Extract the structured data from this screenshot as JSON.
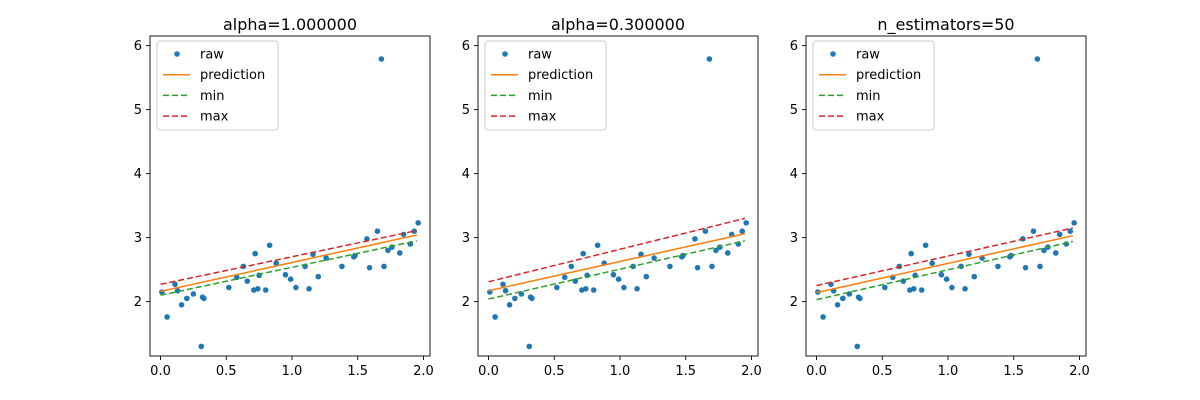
{
  "chart_data": [
    {
      "type": "scatter",
      "title": "alpha=1.000000",
      "xlabel": "",
      "ylabel": "",
      "xlim": [
        -0.08,
        2.05
      ],
      "ylim": [
        1.15,
        6.15
      ],
      "xticks": [
        "0.0",
        "0.5",
        "1.0",
        "1.5",
        "2.0"
      ],
      "yticks": [
        "2",
        "3",
        "4",
        "5",
        "6"
      ],
      "grid": false,
      "legend": {
        "placement": "top-left",
        "entries": [
          "raw",
          "prediction",
          "min",
          "max"
        ]
      },
      "series": [
        {
          "name": "raw",
          "kind": "points",
          "color": "#1f77b4",
          "x": [
            0.01,
            0.05,
            0.11,
            0.13,
            0.16,
            0.2,
            0.25,
            0.31,
            0.32,
            0.33,
            0.52,
            0.58,
            0.63,
            0.66,
            0.71,
            0.72,
            0.74,
            0.75,
            0.8,
            0.83,
            0.88,
            0.95,
            0.99,
            1.03,
            1.1,
            1.13,
            1.16,
            1.2,
            1.26,
            1.38,
            1.47,
            1.48,
            1.57,
            1.59,
            1.65,
            1.68,
            1.7,
            1.73,
            1.76,
            1.82,
            1.85,
            1.9,
            1.93,
            1.96
          ],
          "y": [
            2.15,
            1.76,
            2.27,
            2.17,
            1.95,
            2.05,
            2.12,
            1.3,
            2.07,
            2.05,
            2.22,
            2.38,
            2.55,
            2.32,
            2.18,
            2.75,
            2.2,
            2.41,
            2.18,
            2.88,
            2.6,
            2.42,
            2.35,
            2.22,
            2.55,
            2.2,
            2.74,
            2.39,
            2.68,
            2.55,
            2.7,
            2.72,
            2.98,
            2.53,
            3.1,
            5.79,
            2.55,
            2.8,
            2.85,
            2.76,
            3.05,
            2.9,
            3.1,
            3.23
          ]
        },
        {
          "name": "prediction",
          "kind": "line",
          "color": "#ff7f0e",
          "dash": "solid",
          "x": [
            0,
            1.95
          ],
          "y": [
            2.16,
            3.04
          ]
        },
        {
          "name": "min",
          "kind": "line",
          "color": "#2ca02c",
          "dash": "dashed",
          "x": [
            0,
            1.95
          ],
          "y": [
            2.1,
            2.95
          ]
        },
        {
          "name": "max",
          "kind": "line",
          "color": "#d62728",
          "dash": "dashed",
          "x": [
            0,
            1.95
          ],
          "y": [
            2.27,
            3.11
          ]
        }
      ]
    },
    {
      "type": "scatter",
      "title": "alpha=0.300000",
      "xlabel": "",
      "ylabel": "",
      "xlim": [
        -0.08,
        2.05
      ],
      "ylim": [
        1.15,
        6.15
      ],
      "xticks": [
        "0.0",
        "0.5",
        "1.0",
        "1.5",
        "2.0"
      ],
      "yticks": [
        "2",
        "3",
        "4",
        "5",
        "6"
      ],
      "grid": false,
      "legend": {
        "placement": "top-left",
        "entries": [
          "raw",
          "prediction",
          "min",
          "max"
        ]
      },
      "series": [
        {
          "name": "raw",
          "kind": "points",
          "color": "#1f77b4",
          "x": [
            0.01,
            0.05,
            0.11,
            0.13,
            0.16,
            0.2,
            0.25,
            0.31,
            0.32,
            0.33,
            0.52,
            0.58,
            0.63,
            0.66,
            0.71,
            0.72,
            0.74,
            0.75,
            0.8,
            0.83,
            0.88,
            0.95,
            0.99,
            1.03,
            1.1,
            1.13,
            1.16,
            1.2,
            1.26,
            1.38,
            1.47,
            1.48,
            1.57,
            1.59,
            1.65,
            1.68,
            1.7,
            1.73,
            1.76,
            1.82,
            1.85,
            1.9,
            1.93,
            1.96
          ],
          "y": [
            2.15,
            1.76,
            2.27,
            2.17,
            1.95,
            2.05,
            2.12,
            1.3,
            2.07,
            2.05,
            2.22,
            2.38,
            2.55,
            2.32,
            2.18,
            2.75,
            2.2,
            2.41,
            2.18,
            2.88,
            2.6,
            2.42,
            2.35,
            2.22,
            2.55,
            2.2,
            2.74,
            2.39,
            2.68,
            2.55,
            2.7,
            2.72,
            2.98,
            2.53,
            3.1,
            5.79,
            2.55,
            2.8,
            2.85,
            2.76,
            3.05,
            2.9,
            3.1,
            3.23
          ]
        },
        {
          "name": "prediction",
          "kind": "line",
          "color": "#ff7f0e",
          "dash": "solid",
          "x": [
            0,
            1.95
          ],
          "y": [
            2.17,
            3.06
          ]
        },
        {
          "name": "min",
          "kind": "line",
          "color": "#2ca02c",
          "dash": "dashed",
          "x": [
            0,
            1.95
          ],
          "y": [
            2.04,
            2.95
          ]
        },
        {
          "name": "max",
          "kind": "line",
          "color": "#d62728",
          "dash": "dashed",
          "x": [
            0,
            1.95
          ],
          "y": [
            2.31,
            3.3
          ]
        }
      ]
    },
    {
      "type": "scatter",
      "title": "n_estimators=50",
      "xlabel": "",
      "ylabel": "",
      "xlim": [
        -0.08,
        2.05
      ],
      "ylim": [
        1.15,
        6.15
      ],
      "xticks": [
        "0.0",
        "0.5",
        "1.0",
        "1.5",
        "2.0"
      ],
      "yticks": [
        "2",
        "3",
        "4",
        "5",
        "6"
      ],
      "grid": false,
      "legend": {
        "placement": "top-left",
        "entries": [
          "raw",
          "prediction",
          "min",
          "max"
        ]
      },
      "series": [
        {
          "name": "raw",
          "kind": "points",
          "color": "#1f77b4",
          "x": [
            0.01,
            0.05,
            0.11,
            0.13,
            0.16,
            0.2,
            0.25,
            0.31,
            0.32,
            0.33,
            0.52,
            0.58,
            0.63,
            0.66,
            0.71,
            0.72,
            0.74,
            0.75,
            0.8,
            0.83,
            0.88,
            0.95,
            0.99,
            1.03,
            1.1,
            1.13,
            1.16,
            1.2,
            1.26,
            1.38,
            1.47,
            1.48,
            1.57,
            1.59,
            1.65,
            1.68,
            1.7,
            1.73,
            1.76,
            1.82,
            1.85,
            1.9,
            1.93,
            1.96
          ],
          "y": [
            2.15,
            1.76,
            2.27,
            2.17,
            1.95,
            2.05,
            2.12,
            1.3,
            2.07,
            2.05,
            2.22,
            2.38,
            2.55,
            2.32,
            2.18,
            2.75,
            2.2,
            2.41,
            2.18,
            2.88,
            2.6,
            2.42,
            2.35,
            2.22,
            2.55,
            2.2,
            2.74,
            2.39,
            2.68,
            2.55,
            2.7,
            2.72,
            2.98,
            2.53,
            3.1,
            5.79,
            2.55,
            2.8,
            2.85,
            2.76,
            3.05,
            2.9,
            3.1,
            3.23
          ]
        },
        {
          "name": "prediction",
          "kind": "line",
          "color": "#ff7f0e",
          "dash": "solid",
          "x": [
            0,
            1.95
          ],
          "y": [
            2.14,
            3.03
          ]
        },
        {
          "name": "min",
          "kind": "line",
          "color": "#2ca02c",
          "dash": "dashed",
          "x": [
            0,
            1.95
          ],
          "y": [
            2.03,
            2.94
          ]
        },
        {
          "name": "max",
          "kind": "line",
          "color": "#d62728",
          "dash": "dashed",
          "x": [
            0,
            1.95
          ],
          "y": [
            2.25,
            3.15
          ]
        }
      ]
    }
  ]
}
